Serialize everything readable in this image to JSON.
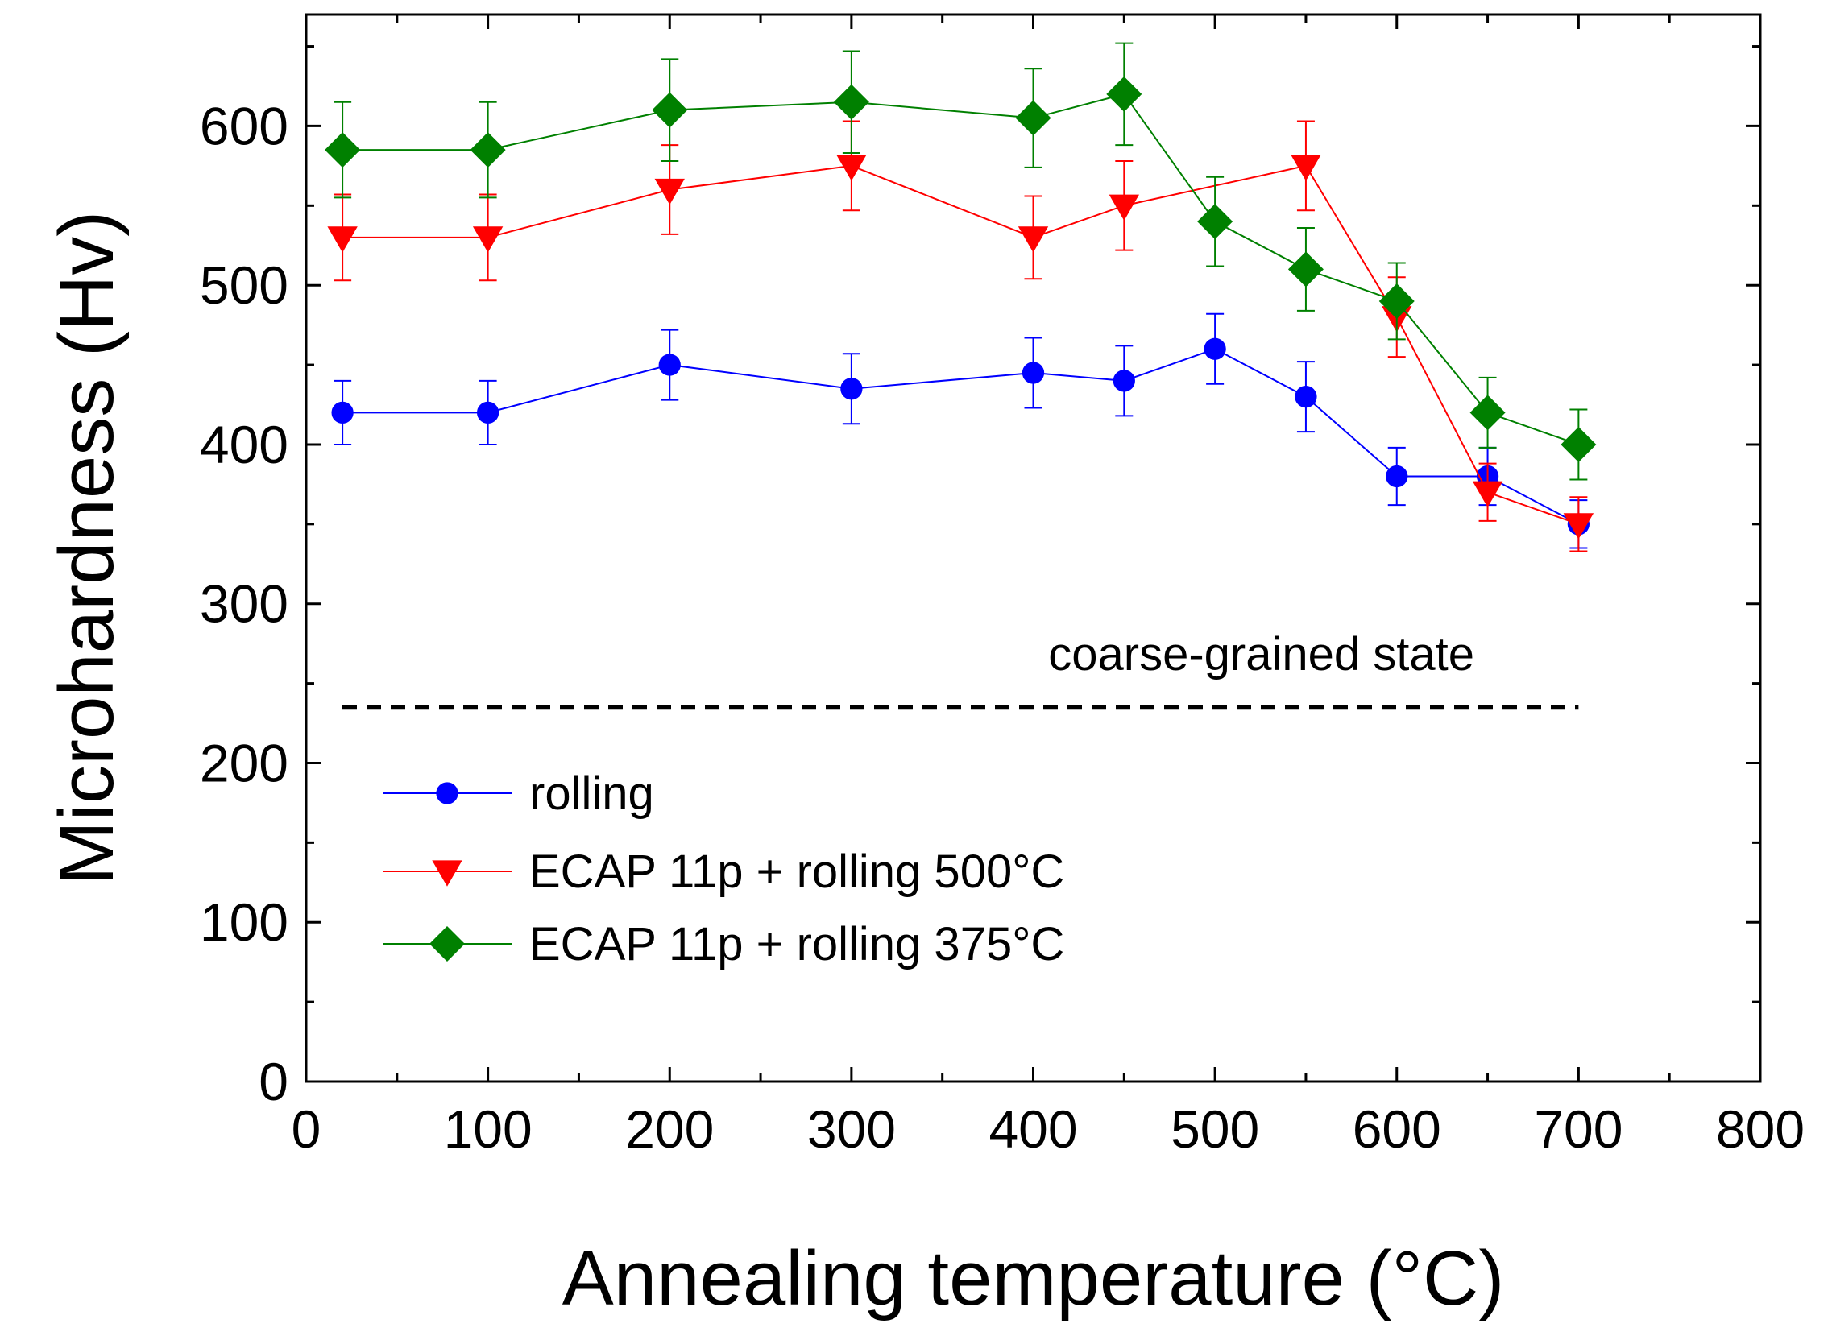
{
  "chart_data": {
    "type": "line",
    "title": "",
    "xlabel": "Annealing temperature (°C)",
    "ylabel": "Microhardness (Hv)",
    "xlim": [
      0,
      800
    ],
    "ylim": [
      0,
      670
    ],
    "x_ticks": [
      0,
      100,
      200,
      300,
      400,
      500,
      600,
      700,
      800
    ],
    "y_ticks": [
      0,
      100,
      200,
      300,
      400,
      500,
      600
    ],
    "grid": false,
    "legend_position": "bottom-left",
    "series": [
      {
        "name": "rolling",
        "color": "#0000ff",
        "marker": "circle",
        "x": [
          20,
          100,
          200,
          300,
          400,
          450,
          500,
          550,
          600,
          650,
          700
        ],
        "values": [
          420,
          420,
          450,
          435,
          445,
          440,
          460,
          430,
          380,
          380,
          350
        ],
        "errors": [
          20,
          20,
          22,
          22,
          22,
          22,
          22,
          22,
          18,
          18,
          15
        ]
      },
      {
        "name": "ECAP 11p + rolling 500°C",
        "color": "#ff0000",
        "marker": "triangle-down",
        "x": [
          20,
          100,
          200,
          300,
          400,
          450,
          550,
          600,
          650,
          700
        ],
        "values": [
          530,
          530,
          560,
          575,
          530,
          550,
          575,
          480,
          370,
          350
        ],
        "errors": [
          27,
          27,
          28,
          28,
          26,
          28,
          28,
          25,
          18,
          17
        ]
      },
      {
        "name": "ECAP 11p + rolling 375°C",
        "color": "#008000",
        "marker": "diamond",
        "x": [
          20,
          100,
          200,
          300,
          400,
          450,
          500,
          550,
          600,
          650,
          700
        ],
        "values": [
          585,
          585,
          610,
          615,
          605,
          620,
          540,
          510,
          490,
          420,
          400
        ],
        "errors": [
          30,
          30,
          32,
          32,
          31,
          32,
          28,
          26,
          24,
          22,
          22
        ]
      }
    ],
    "reference_line": {
      "label": "coarse-grained state",
      "value": 235,
      "x_range": [
        0,
        700
      ],
      "style": "dashed",
      "color": "#000000"
    }
  }
}
